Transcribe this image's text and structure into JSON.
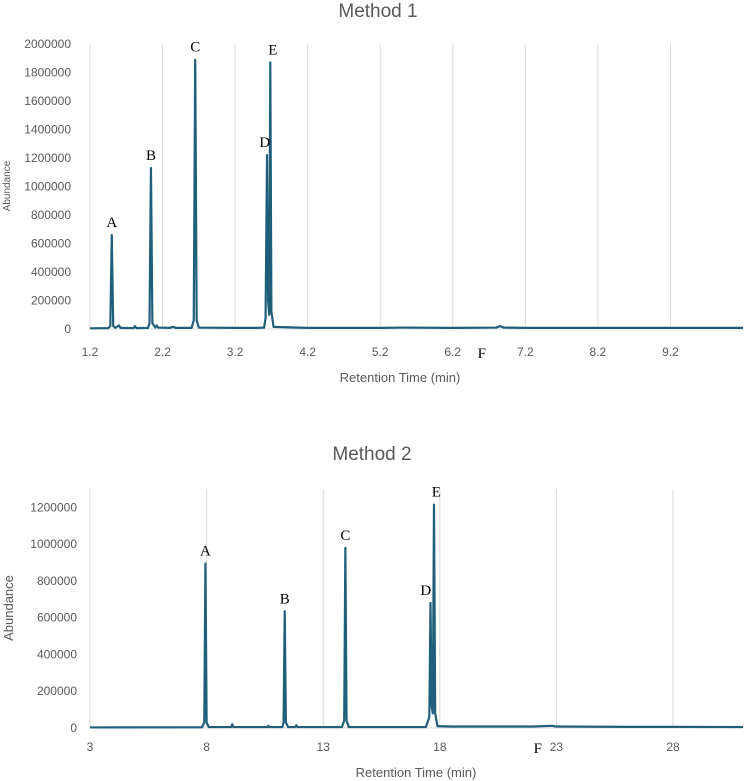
{
  "chart_data": [
    {
      "type": "line",
      "title": "Method 1",
      "xlabel": "Retention Time (min)",
      "ylabel": "Abundance",
      "xlim": [
        1.2,
        10.2
      ],
      "ylim": [
        0,
        2000000
      ],
      "x_ticks": [
        "1.2",
        "2.2",
        "3.2",
        "4.2",
        "5.2",
        "6.2",
        "7.2",
        "8.2",
        "9.2"
      ],
      "y_ticks": [
        "0",
        "200000",
        "400000",
        "600000",
        "800000",
        "1000000",
        "1200000",
        "1400000",
        "1600000",
        "1800000",
        "2000000"
      ],
      "grid": true,
      "color": "#1f5f7a",
      "series": [
        {
          "points": [
            [
              1.2,
              5000
            ],
            [
              1.45,
              6000
            ],
            [
              1.48,
              20000
            ],
            [
              1.5,
              660000
            ],
            [
              1.52,
              20000
            ],
            [
              1.55,
              8000
            ],
            [
              1.6,
              25000
            ],
            [
              1.62,
              8000
            ],
            [
              1.8,
              6000
            ],
            [
              1.82,
              20000
            ],
            [
              1.84,
              6000
            ],
            [
              2.0,
              8000
            ],
            [
              2.02,
              40000
            ],
            [
              2.04,
              1130000
            ],
            [
              2.06,
              40000
            ],
            [
              2.1,
              10000
            ],
            [
              2.12,
              25000
            ],
            [
              2.14,
              10000
            ],
            [
              2.3,
              8000
            ],
            [
              2.35,
              15000
            ],
            [
              2.38,
              8000
            ],
            [
              2.6,
              8000
            ],
            [
              2.63,
              60000
            ],
            [
              2.65,
              1890000
            ],
            [
              2.67,
              60000
            ],
            [
              2.7,
              10000
            ],
            [
              3.2,
              8000
            ],
            [
              3.5,
              8000
            ],
            [
              3.6,
              10000
            ],
            [
              3.62,
              80000
            ],
            [
              3.64,
              1220000
            ],
            [
              3.655,
              200000
            ],
            [
              3.67,
              100000
            ],
            [
              3.685,
              1870000
            ],
            [
              3.7,
              120000
            ],
            [
              3.73,
              15000
            ],
            [
              4.2,
              8000
            ],
            [
              5.2,
              8000
            ],
            [
              5.5,
              10000
            ],
            [
              6.2,
              8000
            ],
            [
              6.8,
              10000
            ],
            [
              6.85,
              20000
            ],
            [
              6.9,
              10000
            ],
            [
              7.2,
              8000
            ],
            [
              8.2,
              8000
            ],
            [
              9.2,
              8000
            ],
            [
              10.2,
              8000
            ]
          ]
        }
      ],
      "annotations": [
        {
          "text": "A",
          "x": 1.5,
          "y": 660000
        },
        {
          "text": "B",
          "x": 2.04,
          "y": 1130000
        },
        {
          "text": "C",
          "x": 2.65,
          "y": 1890000
        },
        {
          "text": "D",
          "x": 3.61,
          "y": 1220000
        },
        {
          "text": "E",
          "x": 3.72,
          "y": 1870000
        },
        {
          "text": "F",
          "x": 6.6,
          "y": 0
        }
      ]
    },
    {
      "type": "line",
      "title": "Method 2",
      "xlabel": "Retention Time (min)",
      "ylabel": "Abundance",
      "xlim": [
        3,
        31
      ],
      "ylim": [
        0,
        1300000
      ],
      "x_ticks": [
        "3",
        "8",
        "13",
        "18",
        "23",
        "28"
      ],
      "y_ticks": [
        "0",
        "200000",
        "400000",
        "600000",
        "800000",
        "1000000",
        "1200000"
      ],
      "grid": true,
      "color": "#1f5f7a",
      "series": [
        {
          "points": [
            [
              3,
              3000
            ],
            [
              7.8,
              4000
            ],
            [
              7.9,
              30000
            ],
            [
              7.95,
              895000
            ],
            [
              8.0,
              30000
            ],
            [
              8.1,
              5000
            ],
            [
              9.05,
              5000
            ],
            [
              9.1,
              20000
            ],
            [
              9.15,
              5000
            ],
            [
              10.6,
              5000
            ],
            [
              10.65,
              12000
            ],
            [
              10.7,
              5000
            ],
            [
              11.25,
              5000
            ],
            [
              11.3,
              30000
            ],
            [
              11.35,
              635000
            ],
            [
              11.4,
              30000
            ],
            [
              11.5,
              5000
            ],
            [
              11.8,
              5000
            ],
            [
              11.85,
              15000
            ],
            [
              11.9,
              5000
            ],
            [
              13.8,
              5000
            ],
            [
              13.9,
              40000
            ],
            [
              13.95,
              980000
            ],
            [
              14.0,
              40000
            ],
            [
              14.1,
              5000
            ],
            [
              17.4,
              5000
            ],
            [
              17.55,
              60000
            ],
            [
              17.6,
              680000
            ],
            [
              17.65,
              120000
            ],
            [
              17.7,
              80000
            ],
            [
              17.75,
              1215000
            ],
            [
              17.8,
              80000
            ],
            [
              17.9,
              10000
            ],
            [
              18.5,
              8000
            ],
            [
              20,
              8000
            ],
            [
              22,
              8000
            ],
            [
              22.8,
              12000
            ],
            [
              23,
              8000
            ],
            [
              26,
              6000
            ],
            [
              28,
              6000
            ],
            [
              31,
              5000
            ]
          ]
        }
      ],
      "annotations": [
        {
          "text": "A",
          "x": 7.95,
          "y": 895000
        },
        {
          "text": "B",
          "x": 11.35,
          "y": 635000
        },
        {
          "text": "C",
          "x": 13.95,
          "y": 980000
        },
        {
          "text": "D",
          "x": 17.4,
          "y": 680000
        },
        {
          "text": "E",
          "x": 17.85,
          "y": 1215000
        },
        {
          "text": "F",
          "x": 22.2,
          "y": 0
        }
      ]
    }
  ]
}
